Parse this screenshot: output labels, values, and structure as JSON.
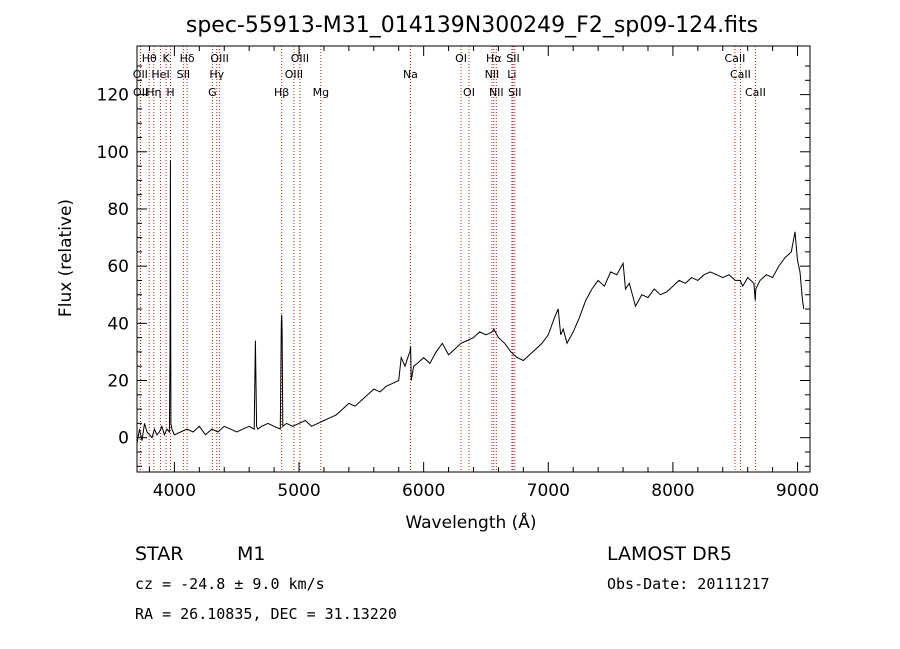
{
  "title": "spec-55913-M31_014139N300249_F2_sp09-124.fits",
  "info": {
    "object_class": "STAR",
    "subclass": "M1",
    "survey": "LAMOST DR5",
    "redshift_line": "cz = -24.8 ± 9.0 km/s",
    "obs_date": "Obs-Date: 20111217",
    "coords": "RA =  26.10835, DEC =  31.13220"
  },
  "chart_data": {
    "type": "line",
    "xlabel": "Wavelength (Å)",
    "ylabel": "Flux (relative)",
    "xlim": [
      3700,
      9100
    ],
    "ylim": [
      -12,
      137
    ],
    "x_ticks": [
      4000,
      5000,
      6000,
      7000,
      8000,
      9000
    ],
    "y_ticks": [
      0,
      20,
      40,
      60,
      80,
      100,
      120
    ],
    "grid": false,
    "spectrum": {
      "x": [
        3700,
        3720,
        3740,
        3760,
        3780,
        3800,
        3820,
        3840,
        3860,
        3880,
        3900,
        3920,
        3940,
        3960,
        3965,
        3968,
        3972,
        3980,
        4000,
        4050,
        4100,
        4150,
        4200,
        4250,
        4300,
        4350,
        4400,
        4450,
        4500,
        4550,
        4600,
        4640,
        4650,
        4660,
        4670,
        4700,
        4750,
        4800,
        4850,
        4858,
        4861,
        4864,
        4870,
        4900,
        4950,
        5000,
        5050,
        5100,
        5150,
        5200,
        5250,
        5300,
        5350,
        5400,
        5450,
        5500,
        5550,
        5600,
        5650,
        5700,
        5750,
        5800,
        5820,
        5850,
        5880,
        5890,
        5895,
        5900,
        5920,
        5950,
        6000,
        6050,
        6100,
        6150,
        6200,
        6250,
        6300,
        6350,
        6400,
        6450,
        6500,
        6550,
        6563,
        6600,
        6650,
        6700,
        6750,
        6800,
        6850,
        6900,
        6950,
        7000,
        7050,
        7080,
        7100,
        7120,
        7150,
        7200,
        7250,
        7300,
        7350,
        7400,
        7450,
        7500,
        7550,
        7600,
        7620,
        7650,
        7700,
        7750,
        7800,
        7850,
        7900,
        7950,
        8000,
        8050,
        8100,
        8150,
        8200,
        8250,
        8300,
        8350,
        8400,
        8450,
        8500,
        8540,
        8560,
        8600,
        8650,
        8660,
        8665,
        8700,
        8750,
        8800,
        8850,
        8900,
        8950,
        8980,
        9000,
        9020,
        9040,
        9050
      ],
      "y": [
        -2,
        3,
        -1,
        5,
        2,
        1,
        0,
        3,
        1,
        2,
        4,
        1,
        3,
        2,
        30,
        97,
        5,
        3,
        1,
        2,
        3,
        2,
        4,
        1,
        3,
        2,
        4,
        3,
        2,
        3,
        4,
        3,
        34,
        4,
        3,
        4,
        5,
        4,
        3,
        40,
        43,
        38,
        4,
        5,
        4,
        5,
        6,
        4,
        5,
        6,
        7,
        8,
        10,
        12,
        11,
        13,
        15,
        17,
        16,
        18,
        19,
        20,
        28,
        25,
        29,
        30,
        32,
        20,
        25,
        26,
        28,
        26,
        30,
        33,
        29,
        31,
        33,
        34,
        35,
        37,
        36,
        37,
        38,
        35,
        33,
        30,
        28,
        27,
        29,
        31,
        33,
        36,
        42,
        45,
        36,
        38,
        33,
        37,
        42,
        48,
        52,
        55,
        53,
        58,
        57,
        61,
        52,
        54,
        46,
        50,
        49,
        52,
        50,
        51,
        53,
        55,
        54,
        56,
        55,
        57,
        58,
        57,
        56,
        57,
        55,
        55,
        53,
        56,
        54,
        48,
        52,
        55,
        57,
        56,
        60,
        63,
        65,
        72,
        62,
        58,
        48,
        45
      ]
    },
    "spectral_lines": [
      {
        "name": "Hθ",
        "wavelength": 3798,
        "row": 1
      },
      {
        "name": "OII",
        "wavelength": 3727,
        "row": 2
      },
      {
        "name": "OII",
        "wavelength": 3729,
        "row": 3
      },
      {
        "name": "HeI",
        "wavelength": 3889,
        "row": 2
      },
      {
        "name": "Hη",
        "wavelength": 3835,
        "row": 3
      },
      {
        "name": "K",
        "wavelength": 3934,
        "row": 1
      },
      {
        "name": "H",
        "wavelength": 3969,
        "row": 3
      },
      {
        "name": "Hδ",
        "wavelength": 4102,
        "row": 1
      },
      {
        "name": "SII",
        "wavelength": 4072,
        "row": 2
      },
      {
        "name": "OIII",
        "wavelength": 4363,
        "row": 1
      },
      {
        "name": "Hγ",
        "wavelength": 4340,
        "row": 2
      },
      {
        "name": "G",
        "wavelength": 4305,
        "row": 3
      },
      {
        "name": "OIII",
        "wavelength": 5007,
        "row": 1
      },
      {
        "name": "OIII",
        "wavelength": 4959,
        "row": 2
      },
      {
        "name": "Hβ",
        "wavelength": 4861,
        "row": 3
      },
      {
        "name": "Mg",
        "wavelength": 5175,
        "row": 3
      },
      {
        "name": "Na",
        "wavelength": 5894,
        "row": 2
      },
      {
        "name": "OI",
        "wavelength": 6300,
        "row": 1
      },
      {
        "name": "OI",
        "wavelength": 6364,
        "row": 3
      },
      {
        "name": "Hα",
        "wavelength": 6563,
        "row": 1
      },
      {
        "name": "SII",
        "wavelength": 6717,
        "row": 1
      },
      {
        "name": "NII",
        "wavelength": 6548,
        "row": 2
      },
      {
        "name": "NII",
        "wavelength": 6583,
        "row": 3
      },
      {
        "name": "Li",
        "wavelength": 6708,
        "row": 2
      },
      {
        "name": "SII",
        "wavelength": 6731,
        "row": 3
      },
      {
        "name": "CaII",
        "wavelength": 8498,
        "row": 1
      },
      {
        "name": "CaII",
        "wavelength": 8542,
        "row": 2
      },
      {
        "name": "CaII",
        "wavelength": 8662,
        "row": 3
      }
    ]
  }
}
